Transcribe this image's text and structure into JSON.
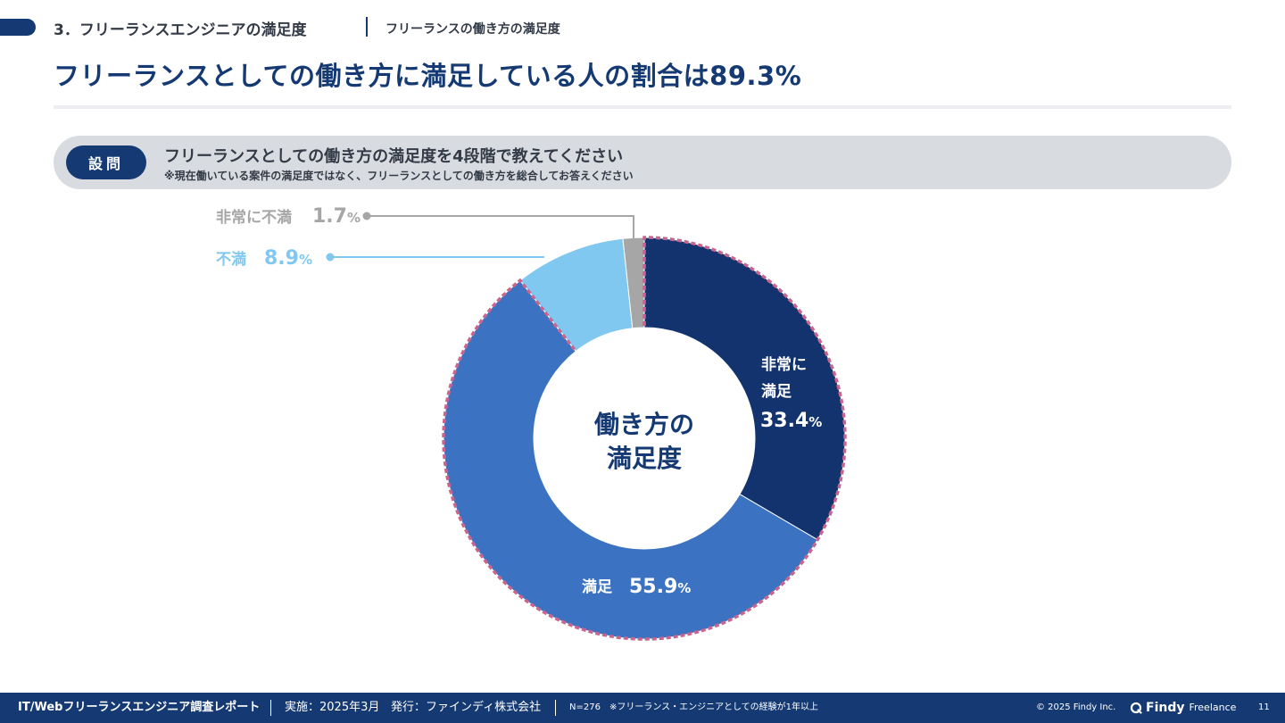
{
  "section": {
    "title": "3．フリーランスエンジニアの満足度",
    "subtitle": "フリーランスの働き方の満足度"
  },
  "headline": "フリーランスとしての働き方に満足している人の割合は89.3%",
  "question": {
    "badge": "設問",
    "text": "フリーランスとしての働き方の満足度を4段階で教えてください",
    "note": "※現在働いている案件の満足度ではなく、フリーランスとしての働き方を総合してお答えください"
  },
  "chart_data": {
    "type": "pie",
    "title": "働き方の満足度",
    "center_label": [
      "働き方の",
      "満足度"
    ],
    "unit": "%",
    "slices": [
      {
        "label": "非常に満足",
        "label_lines": [
          "非常に",
          "満足"
        ],
        "value": 33.4,
        "value_text": "33.4",
        "color": "#12336e"
      },
      {
        "label": "満足",
        "label_lines": [
          "満足"
        ],
        "value": 55.9,
        "value_text": "55.9",
        "color": "#3b73c2"
      },
      {
        "label": "不満",
        "label_lines": [
          "不満"
        ],
        "value": 8.9,
        "value_text": "8.9",
        "color": "#80c8f0"
      },
      {
        "label": "非常に不満",
        "label_lines": [
          "非常に不満"
        ],
        "value": 1.7,
        "value_text": "1.7",
        "color": "#a6a6a6"
      }
    ],
    "highlight": "非常に満足 + 満足 (dashed outline)",
    "highlight_color": "#c9648f"
  },
  "footer": {
    "report": "IT/Webフリーランスエンジニア調査レポート",
    "date": "実施：2025年3月",
    "publisher": "発行：ファインディ株式会社",
    "sample": "N=276",
    "condition": "※フリーランス・エンジニアとしての経験が1年以上",
    "copyright": "© 2025 Findy Inc.",
    "brand": "Findy",
    "brand_sub": "Freelance",
    "page": "11"
  },
  "colors": {
    "navy": "#153a73",
    "text": "#333b47",
    "question_bg": "#d8dbe0"
  }
}
